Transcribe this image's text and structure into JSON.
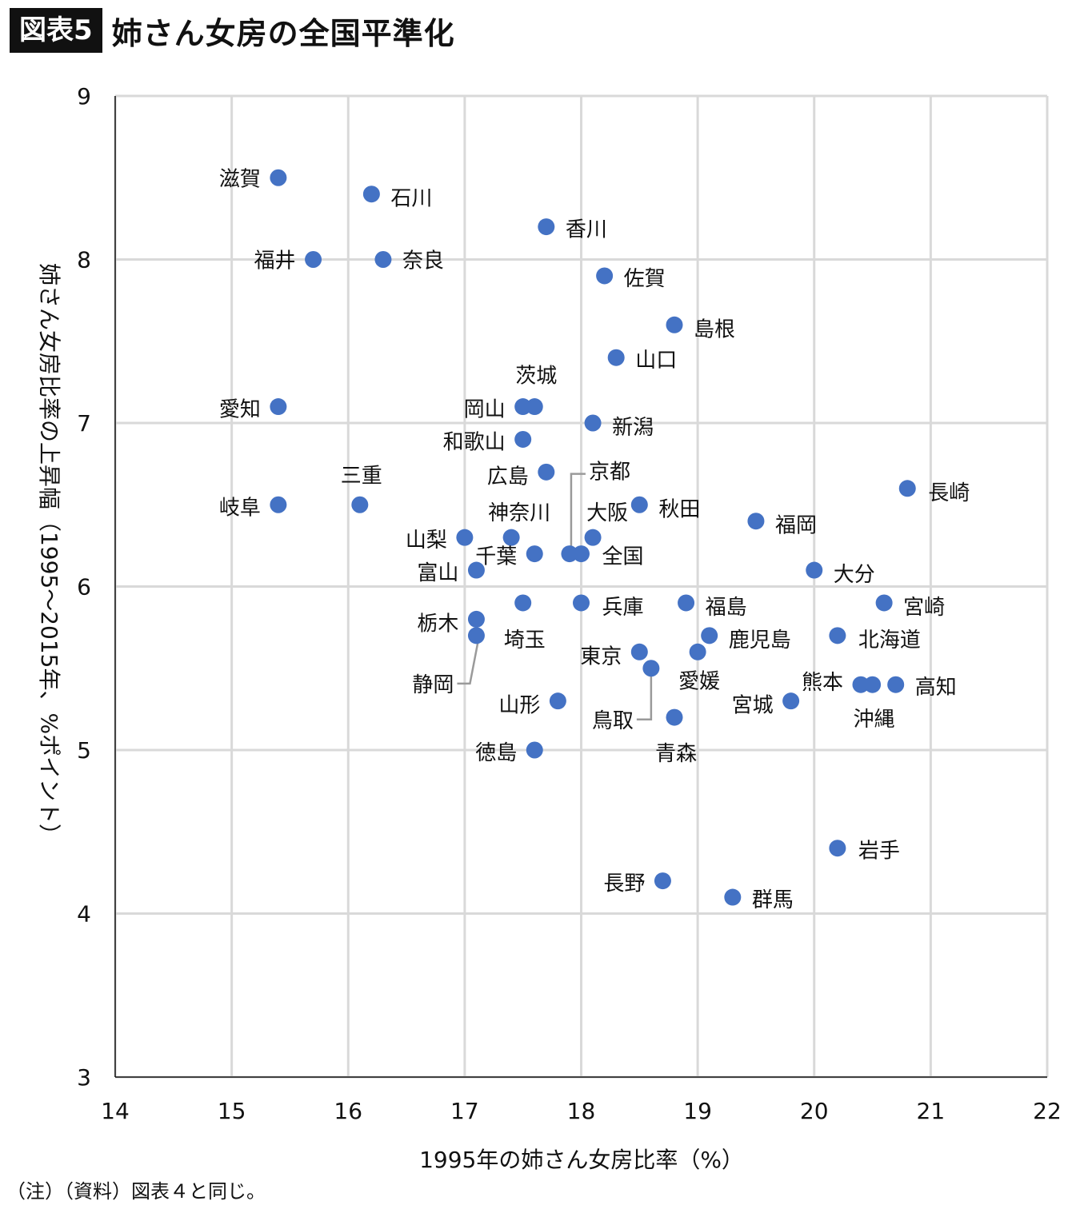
{
  "header": {
    "badge": "図表5",
    "title": "姉さん女房の全国平準化"
  },
  "note": "（注）（資料）図表４と同じ。",
  "colors": {
    "point": "#4472c4",
    "grid": "#d9d9d9",
    "axis": "#111111",
    "leader": "#9a9a9a"
  },
  "chart_data": {
    "type": "scatter",
    "title": "姉さん女房の全国平準化",
    "xlabel": "1995年の姉さん女房比率（%）",
    "ylabel": "姉さん女房比率の上昇幅（1995～2015年、%ポイント）",
    "xlim": [
      14,
      22
    ],
    "ylim": [
      3,
      9
    ],
    "xticks": [
      14,
      15,
      16,
      17,
      18,
      19,
      20,
      21,
      22
    ],
    "yticks": [
      3,
      4,
      5,
      6,
      7,
      8,
      9
    ],
    "grid": true,
    "legend": "none",
    "points": [
      {
        "label": "滋賀",
        "x": 15.4,
        "y": 8.5
      },
      {
        "label": "石川",
        "x": 16.2,
        "y": 8.4
      },
      {
        "label": "香川",
        "x": 17.7,
        "y": 8.2
      },
      {
        "label": "福井",
        "x": 15.7,
        "y": 8.0
      },
      {
        "label": "奈良",
        "x": 16.3,
        "y": 8.0
      },
      {
        "label": "佐賀",
        "x": 18.2,
        "y": 7.9
      },
      {
        "label": "島根",
        "x": 18.8,
        "y": 7.6
      },
      {
        "label": "山口",
        "x": 18.3,
        "y": 7.4
      },
      {
        "label": "愛知",
        "x": 15.4,
        "y": 7.1
      },
      {
        "label": "岡山",
        "x": 17.5,
        "y": 7.1
      },
      {
        "label": "茨城",
        "x": 17.6,
        "y": 7.1
      },
      {
        "label": "新潟",
        "x": 18.1,
        "y": 7.0
      },
      {
        "label": "和歌山",
        "x": 17.5,
        "y": 6.9
      },
      {
        "label": "広島",
        "x": 17.7,
        "y": 6.7
      },
      {
        "label": "長崎",
        "x": 20.8,
        "y": 6.6
      },
      {
        "label": "岐阜",
        "x": 15.4,
        "y": 6.5
      },
      {
        "label": "三重",
        "x": 16.1,
        "y": 6.5
      },
      {
        "label": "秋田",
        "x": 18.5,
        "y": 6.5
      },
      {
        "label": "福岡",
        "x": 19.5,
        "y": 6.4
      },
      {
        "label": "山梨",
        "x": 17.0,
        "y": 6.3
      },
      {
        "label": "神奈川",
        "x": 17.4,
        "y": 6.3
      },
      {
        "label": "大阪",
        "x": 18.1,
        "y": 6.3
      },
      {
        "label": "千葉",
        "x": 17.6,
        "y": 6.2
      },
      {
        "label": "京都",
        "x": 17.9,
        "y": 6.2
      },
      {
        "label": "全国",
        "x": 18.0,
        "y": 6.2
      },
      {
        "label": "富山",
        "x": 17.1,
        "y": 6.1
      },
      {
        "label": "大分",
        "x": 20.0,
        "y": 6.1
      },
      {
        "label": "",
        "x": 17.5,
        "y": 5.9
      },
      {
        "label": "兵庫",
        "x": 18.0,
        "y": 5.9
      },
      {
        "label": "福島",
        "x": 18.9,
        "y": 5.9
      },
      {
        "label": "宮崎",
        "x": 20.6,
        "y": 5.9
      },
      {
        "label": "栃木",
        "x": 17.1,
        "y": 5.8
      },
      {
        "label": "静岡",
        "x": 17.1,
        "y": 5.7
      },
      {
        "label": "鹿児島",
        "x": 19.1,
        "y": 5.7
      },
      {
        "label": "北海道",
        "x": 20.2,
        "y": 5.7
      },
      {
        "label": "東京",
        "x": 18.5,
        "y": 5.6
      },
      {
        "label": "愛媛",
        "x": 19.0,
        "y": 5.6
      },
      {
        "label": "鳥取",
        "x": 18.6,
        "y": 5.5
      },
      {
        "label": "熊本",
        "x": 20.4,
        "y": 5.4
      },
      {
        "label": "沖縄",
        "x": 20.5,
        "y": 5.4
      },
      {
        "label": "高知",
        "x": 20.7,
        "y": 5.4
      },
      {
        "label": "山形",
        "x": 17.8,
        "y": 5.3
      },
      {
        "label": "宮城",
        "x": 19.8,
        "y": 5.3
      },
      {
        "label": "青森",
        "x": 18.8,
        "y": 5.2
      },
      {
        "label": "徳島",
        "x": 17.6,
        "y": 5.0
      },
      {
        "label": "岩手",
        "x": 20.2,
        "y": 4.4
      },
      {
        "label": "長野",
        "x": 18.7,
        "y": 4.2
      },
      {
        "label": "群馬",
        "x": 19.3,
        "y": 4.1
      }
    ],
    "extra_labels": [
      {
        "label": "埼玉",
        "x": 17.5,
        "y": 5.7
      }
    ]
  }
}
